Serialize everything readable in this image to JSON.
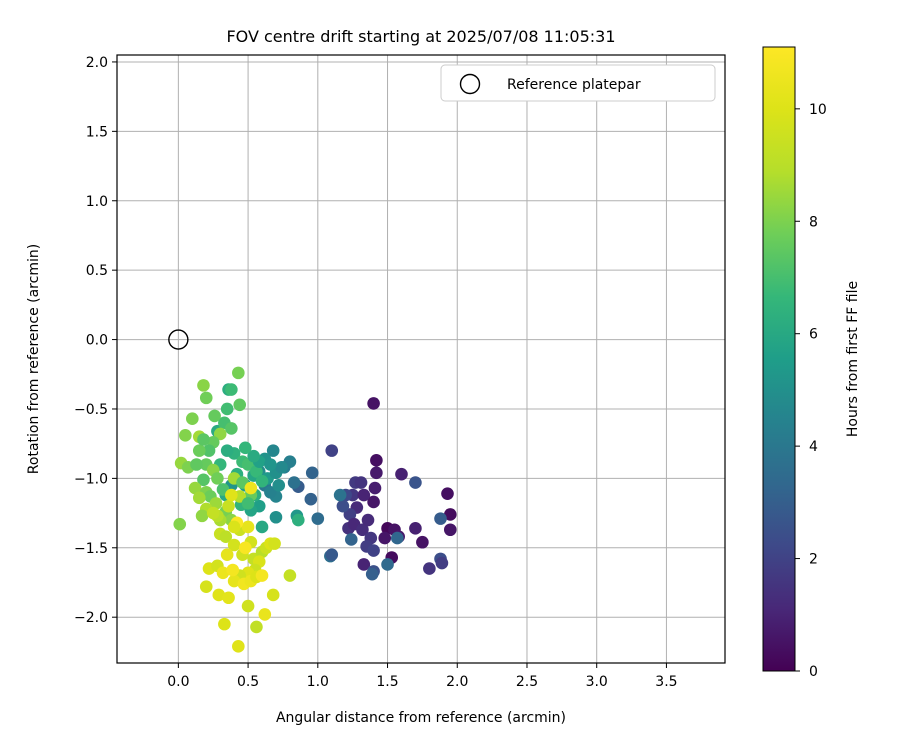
{
  "chart_data": {
    "type": "scatter",
    "title": "FOV centre drift starting at 2025/07/08 11:05:31",
    "xlabel": "Angular distance from reference (arcmin)",
    "ylabel": "Rotation from reference (arcmin)",
    "xlim": [
      -0.44,
      3.92
    ],
    "ylim": [
      -2.33,
      2.05
    ],
    "xticks": [
      0.0,
      0.5,
      1.0,
      1.5,
      2.0,
      2.5,
      3.0,
      3.5
    ],
    "xtick_labels": [
      "0.0",
      "0.5",
      "1.0",
      "1.5",
      "2.0",
      "2.5",
      "3.0",
      "3.5"
    ],
    "yticks": [
      2.0,
      1.5,
      1.0,
      0.5,
      0.0,
      -0.5,
      -1.0,
      -1.5,
      -2.0
    ],
    "ytick_labels": [
      "2.0",
      "1.5",
      "1.0",
      "0.5",
      "0.0",
      "−0.5",
      "−1.0",
      "−1.5",
      "−2.0"
    ],
    "grid": true,
    "legend": {
      "location": "top-right",
      "entries": [
        "Reference platepar"
      ]
    },
    "reference_point": {
      "x": 0.0,
      "y": 0.0,
      "style": "hollow circle"
    },
    "colorbar": {
      "label": "Hours from first FF file",
      "colormap": "viridis",
      "range": [
        0,
        11.1
      ],
      "ticks": [
        0,
        2,
        4,
        6,
        8,
        10
      ],
      "tick_labels": [
        "0",
        "2",
        "4",
        "6",
        "8",
        "10"
      ]
    },
    "points": [
      [
        1.4,
        -0.46,
        0.5
      ],
      [
        1.42,
        -0.87,
        0.4
      ],
      [
        1.42,
        -0.96,
        0.7
      ],
      [
        1.41,
        -1.07,
        0.8
      ],
      [
        1.4,
        -1.17,
        0.6
      ],
      [
        1.6,
        -0.97,
        0.9
      ],
      [
        1.5,
        -1.36,
        0.2
      ],
      [
        1.55,
        -1.37,
        0.5
      ],
      [
        1.58,
        -1.42,
        0.7
      ],
      [
        1.53,
        -1.57,
        0.3
      ],
      [
        1.48,
        -1.43,
        0.6
      ],
      [
        1.7,
        -1.36,
        0.9
      ],
      [
        1.75,
        -1.46,
        0.5
      ],
      [
        1.93,
        -1.11,
        0.4
      ],
      [
        1.95,
        -1.26,
        0.3
      ],
      [
        1.95,
        -1.37,
        0.6
      ],
      [
        1.8,
        -1.65,
        1.5
      ],
      [
        1.88,
        -1.58,
        2.4
      ],
      [
        1.89,
        -1.61,
        1.8
      ],
      [
        1.88,
        -1.29,
        2.9
      ],
      [
        1.7,
        -1.03,
        2.6
      ],
      [
        1.1,
        -0.8,
        2.0
      ],
      [
        1.27,
        -1.03,
        1.7
      ],
      [
        1.31,
        -1.03,
        1.5
      ],
      [
        1.25,
        -1.12,
        1.6
      ],
      [
        1.28,
        -1.21,
        1.2
      ],
      [
        1.33,
        -1.12,
        1.0
      ],
      [
        1.2,
        -1.12,
        2.2
      ],
      [
        1.23,
        -1.26,
        1.9
      ],
      [
        1.18,
        -1.2,
        2.4
      ],
      [
        1.22,
        -1.36,
        1.4
      ],
      [
        1.26,
        -1.33,
        1.1
      ],
      [
        1.32,
        -1.37,
        1.3
      ],
      [
        1.36,
        -1.3,
        1.2
      ],
      [
        1.38,
        -1.43,
        1.6
      ],
      [
        1.35,
        -1.49,
        1.8
      ],
      [
        1.4,
        -1.52,
        2.0
      ],
      [
        1.33,
        -1.62,
        1.0
      ],
      [
        1.4,
        -1.67,
        2.5
      ],
      [
        1.39,
        -1.69,
        3.0
      ],
      [
        1.5,
        -1.62,
        3.4
      ],
      [
        1.57,
        -1.43,
        3.3
      ],
      [
        1.24,
        -1.44,
        3.2
      ],
      [
        1.09,
        -1.56,
        3.6
      ],
      [
        1.1,
        -1.55,
        2.8
      ],
      [
        0.96,
        -0.96,
        3.2
      ],
      [
        0.95,
        -1.15,
        3.1
      ],
      [
        0.86,
        -1.06,
        2.9
      ],
      [
        1.0,
        -1.29,
        3.5
      ],
      [
        1.16,
        -1.12,
        3.8
      ],
      [
        0.83,
        -1.03,
        3.7
      ],
      [
        0.85,
        -1.27,
        5.3
      ],
      [
        0.86,
        -1.3,
        6.3
      ],
      [
        0.7,
        -1.28,
        5.0
      ],
      [
        0.7,
        -1.13,
        4.5
      ],
      [
        0.76,
        -0.92,
        4.2
      ],
      [
        0.8,
        -0.88,
        4.3
      ],
      [
        0.68,
        -0.8,
        4.6
      ],
      [
        0.62,
        -0.86,
        5.1
      ],
      [
        0.58,
        -0.95,
        4.8
      ],
      [
        0.62,
        -1.05,
        4.0
      ],
      [
        0.66,
        -1.1,
        4.4
      ],
      [
        0.72,
        -1.05,
        4.9
      ],
      [
        0.58,
        -1.2,
        5.6
      ],
      [
        0.6,
        -1.35,
        6.0
      ],
      [
        0.52,
        -1.23,
        5.8
      ],
      [
        0.45,
        -1.19,
        6.5
      ],
      [
        0.55,
        -1.12,
        6.2
      ],
      [
        0.48,
        -1.05,
        5.5
      ],
      [
        0.54,
        -0.98,
        5.9
      ],
      [
        0.42,
        -0.97,
        6.3
      ],
      [
        0.38,
        -1.05,
        5.2
      ],
      [
        0.34,
        -1.12,
        6.0
      ],
      [
        0.4,
        -0.82,
        6.4
      ],
      [
        0.46,
        -0.88,
        6.8
      ],
      [
        0.3,
        -0.9,
        6.6
      ],
      [
        0.35,
        -0.8,
        6.2
      ],
      [
        0.28,
        -0.66,
        6.1
      ],
      [
        0.33,
        -0.6,
        7.0
      ],
      [
        0.38,
        -0.64,
        7.3
      ],
      [
        0.36,
        -0.36,
        6.2
      ],
      [
        0.38,
        -0.36,
        6.8
      ],
      [
        0.43,
        -0.24,
        7.9
      ],
      [
        0.18,
        -0.33,
        8.2
      ],
      [
        0.2,
        -0.42,
        7.8
      ],
      [
        0.26,
        -0.55,
        7.6
      ],
      [
        0.35,
        -0.5,
        6.9
      ],
      [
        0.44,
        -0.47,
        7.5
      ],
      [
        0.3,
        -0.68,
        8.3
      ],
      [
        0.25,
        -0.74,
        7.6
      ],
      [
        0.22,
        -0.8,
        7.2
      ],
      [
        0.15,
        -0.8,
        7.7
      ],
      [
        0.1,
        -0.57,
        8.0
      ],
      [
        0.05,
        -0.69,
        8.1
      ],
      [
        0.15,
        -0.7,
        8.6
      ],
      [
        0.18,
        -0.72,
        7.4
      ],
      [
        0.2,
        -0.9,
        7.6
      ],
      [
        0.25,
        -0.94,
        8.2
      ],
      [
        0.02,
        -0.89,
        8.4
      ],
      [
        0.07,
        -0.92,
        8.0
      ],
      [
        0.13,
        -0.9,
        7.5
      ],
      [
        0.18,
        -1.01,
        7.3
      ],
      [
        0.28,
        -1.0,
        7.8
      ],
      [
        0.32,
        -1.08,
        7.1
      ],
      [
        0.12,
        -1.07,
        8.4
      ],
      [
        0.2,
        -1.1,
        8.0
      ],
      [
        0.23,
        -1.13,
        7.7
      ],
      [
        0.27,
        -1.18,
        8.5
      ],
      [
        0.34,
        -1.24,
        7.9
      ],
      [
        0.38,
        -1.3,
        8.2
      ],
      [
        0.3,
        -1.3,
        8.7
      ],
      [
        0.2,
        -1.22,
        8.8
      ],
      [
        0.17,
        -1.27,
        8.3
      ],
      [
        0.28,
        -1.27,
        9.0
      ],
      [
        0.01,
        -1.33,
        8.1
      ],
      [
        0.4,
        -1.0,
        8.6
      ],
      [
        0.46,
        -1.03,
        7.4
      ],
      [
        0.5,
        -0.9,
        7.0
      ],
      [
        0.56,
        -0.95,
        6.7
      ],
      [
        0.52,
        -1.12,
        7.6
      ],
      [
        0.44,
        -1.13,
        8.9
      ],
      [
        0.36,
        -1.2,
        9.4
      ],
      [
        0.3,
        -1.4,
        9.4
      ],
      [
        0.34,
        -1.42,
        9.1
      ],
      [
        0.4,
        -1.48,
        9.7
      ],
      [
        0.44,
        -1.37,
        9.5
      ],
      [
        0.5,
        -1.35,
        10.3
      ],
      [
        0.52,
        -1.46,
        9.7
      ],
      [
        0.46,
        -1.55,
        9.6
      ],
      [
        0.54,
        -1.58,
        9.3
      ],
      [
        0.6,
        -1.53,
        9.0
      ],
      [
        0.63,
        -1.5,
        9.5
      ],
      [
        0.66,
        -1.47,
        10.0
      ],
      [
        0.69,
        -1.47,
        9.7
      ],
      [
        0.58,
        -1.6,
        9.9
      ],
      [
        0.55,
        -1.66,
        9.5
      ],
      [
        0.5,
        -1.68,
        10.1
      ],
      [
        0.44,
        -1.7,
        9.6
      ],
      [
        0.4,
        -1.74,
        10.3
      ],
      [
        0.47,
        -1.76,
        10.7
      ],
      [
        0.52,
        -1.74,
        10.5
      ],
      [
        0.56,
        -1.71,
        10.0
      ],
      [
        0.6,
        -1.7,
        10.8
      ],
      [
        0.22,
        -1.65,
        10.0
      ],
      [
        0.28,
        -1.63,
        9.7
      ],
      [
        0.32,
        -1.68,
        10.5
      ],
      [
        0.35,
        -1.55,
        10.3
      ],
      [
        0.39,
        -1.66,
        10.8
      ],
      [
        0.2,
        -1.78,
        9.8
      ],
      [
        0.29,
        -1.84,
        10.1
      ],
      [
        0.36,
        -1.86,
        10.2
      ],
      [
        0.5,
        -1.92,
        9.6
      ],
      [
        0.56,
        -2.07,
        9.2
      ],
      [
        0.62,
        -1.98,
        10.4
      ],
      [
        0.68,
        -1.84,
        9.8
      ],
      [
        0.8,
        -1.7,
        9.3
      ],
      [
        0.33,
        -2.05,
        10.0
      ],
      [
        0.43,
        -2.21,
        10.1
      ],
      [
        0.48,
        -1.5,
        10.9
      ],
      [
        0.42,
        -1.32,
        11.0
      ],
      [
        0.52,
        -1.07,
        10.6
      ],
      [
        0.38,
        -1.12,
        10.1
      ],
      [
        0.4,
        -1.35,
        9.9
      ],
      [
        0.25,
        -1.25,
        9.3
      ],
      [
        0.15,
        -1.14,
        8.6
      ],
      [
        0.64,
        -1.0,
        5.4
      ],
      [
        0.7,
        -0.96,
        5.0
      ],
      [
        0.74,
        -0.92,
        4.7
      ],
      [
        0.58,
        -0.88,
        5.7
      ],
      [
        0.54,
        -0.84,
        6.1
      ],
      [
        0.48,
        -0.78,
        6.6
      ],
      [
        0.66,
        -0.9,
        5.2
      ],
      [
        0.6,
        -1.02,
        6.5
      ],
      [
        0.5,
        -1.18,
        6.9
      ]
    ]
  }
}
